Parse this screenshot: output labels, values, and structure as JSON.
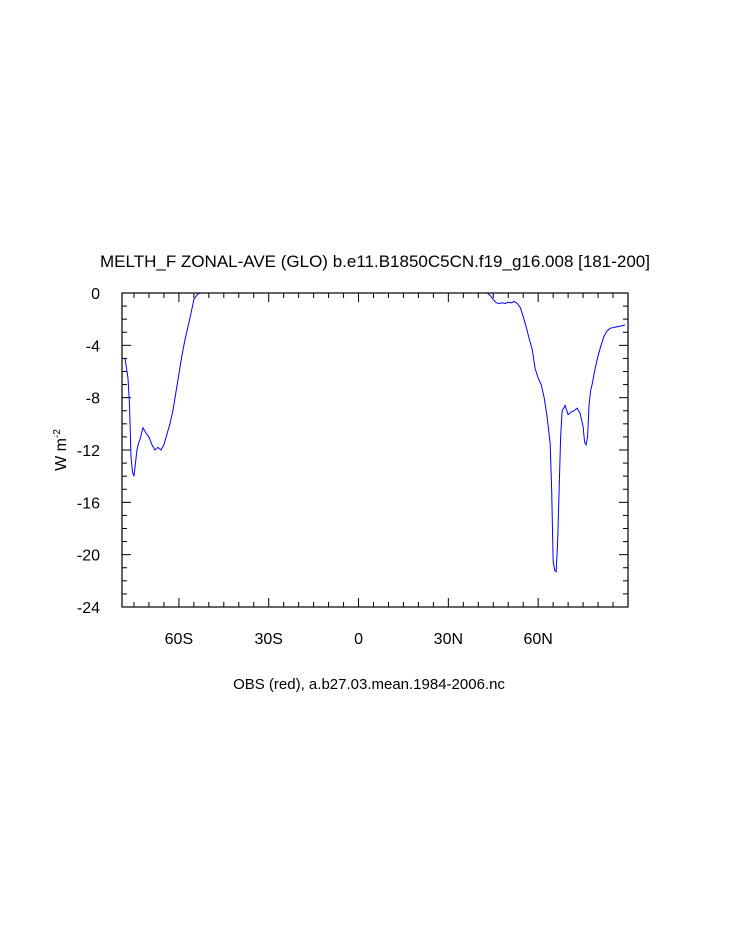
{
  "chart_data": {
    "type": "line",
    "title": "MELTH_F ZONAL-AVE (GLO) b.e11.B1850C5CN.f19_g16.008 [181-200]",
    "ylabel": "W m",
    "ylabel_superscript": "-2",
    "footer": "OBS (red), a.b27.03.mean.1984-2006.nc",
    "xlim": [
      -79,
      90
    ],
    "ylim": [
      -24,
      0
    ],
    "x_ticks": [
      -60,
      -30,
      0,
      30,
      60
    ],
    "x_tick_labels": [
      "60S",
      "30S",
      "0",
      "30N",
      "60N"
    ],
    "y_ticks": [
      0,
      -4,
      -8,
      -12,
      -16,
      -20,
      -24
    ],
    "y_tick_labels": [
      "0",
      "-4",
      "-8",
      "-12",
      "-16",
      "-20",
      "-24"
    ],
    "grid": false,
    "series": [
      {
        "color": "#0000ff",
        "x": [
          -78,
          -77,
          -76.5,
          -76,
          -75.5,
          -75,
          -74.5,
          -74,
          -73.5,
          -73,
          -72,
          -71,
          -70,
          -69,
          -68,
          -67,
          -66,
          -65,
          -64,
          -63,
          -62,
          -61,
          -60,
          -59,
          -58,
          -57,
          -56,
          -55,
          -54,
          -53,
          -51,
          -49,
          -45,
          -40,
          -30,
          -20,
          -10,
          0,
          10,
          20,
          30,
          35,
          40,
          43,
          44,
          45,
          46,
          47,
          48,
          49,
          50,
          51,
          52,
          53,
          54,
          55,
          56,
          57,
          58,
          59,
          60,
          61,
          62,
          63,
          64,
          64.5,
          65,
          65.5,
          66,
          66.5,
          67,
          67.5,
          68,
          69,
          70,
          71,
          72,
          73,
          74,
          75,
          75.5,
          76,
          76.5,
          77,
          77.5,
          78,
          79,
          80,
          81,
          82,
          83,
          84,
          86,
          88,
          89
        ],
        "values": [
          -5.0,
          -6.5,
          -8.5,
          -12.5,
          -13.7,
          -14.0,
          -13.0,
          -12.0,
          -11.5,
          -11.2,
          -10.3,
          -10.7,
          -11.0,
          -11.6,
          -12.0,
          -11.8,
          -12.0,
          -11.6,
          -10.8,
          -10.0,
          -9.0,
          -7.6,
          -6.2,
          -4.8,
          -3.6,
          -2.6,
          -1.6,
          -0.5,
          -0.15,
          0,
          0,
          0,
          0,
          0,
          0,
          0,
          0,
          0,
          0,
          0,
          0,
          0,
          0,
          0,
          -0.2,
          -0.5,
          -0.75,
          -0.8,
          -0.75,
          -0.8,
          -0.7,
          -0.75,
          -0.65,
          -0.8,
          -1.1,
          -1.8,
          -2.6,
          -3.5,
          -4.3,
          -5.8,
          -6.5,
          -7.0,
          -8.0,
          -9.5,
          -11.5,
          -15.0,
          -20.5,
          -21.2,
          -21.3,
          -19.0,
          -15.0,
          -11.0,
          -9.0,
          -8.6,
          -9.3,
          -9.1,
          -9.0,
          -8.8,
          -9.2,
          -10.2,
          -11.4,
          -11.6,
          -11.0,
          -8.5,
          -7.5,
          -7.0,
          -5.8,
          -4.8,
          -4.0,
          -3.3,
          -2.9,
          -2.7,
          -2.6,
          -2.5,
          -2.45
        ]
      }
    ]
  }
}
